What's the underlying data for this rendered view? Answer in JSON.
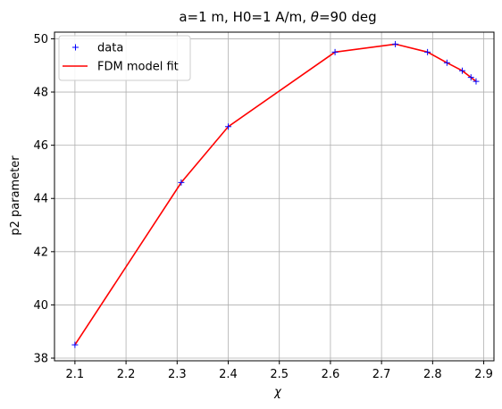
{
  "chart_data": {
    "type": "line",
    "title_parts": {
      "prefix": "a=1 m, H0=1 A/m, ",
      "symbol": "θ",
      "suffix": "=90 deg"
    },
    "xlabel": "χ",
    "ylabel": "p2 parameter",
    "xlim": [
      2.06,
      2.92
    ],
    "ylim": [
      37.9,
      50.25
    ],
    "xticks": [
      "2.1",
      "2.2",
      "2.3",
      "2.4",
      "2.5",
      "2.6",
      "2.7",
      "2.8",
      "2.9"
    ],
    "xtick_values": [
      2.1,
      2.2,
      2.3,
      2.4,
      2.5,
      2.6,
      2.7,
      2.8,
      2.9
    ],
    "yticks": [
      "38",
      "40",
      "42",
      "44",
      "46",
      "48",
      "50"
    ],
    "ytick_values": [
      38,
      40,
      42,
      44,
      46,
      48,
      50
    ],
    "grid": true,
    "legend_position": "top-left",
    "series": [
      {
        "name": "data",
        "style": "markers",
        "marker": "+",
        "color": "#0000ff",
        "x": [
          2.1,
          2.308,
          2.4,
          2.609,
          2.727,
          2.79,
          2.828,
          2.858,
          2.875,
          2.885
        ],
        "y": [
          38.5,
          44.6,
          46.7,
          49.5,
          49.8,
          49.5,
          49.1,
          48.8,
          48.55,
          48.4
        ]
      },
      {
        "name": "FDM model fit",
        "style": "line",
        "color": "#ff0000",
        "x": [
          2.1,
          2.308,
          2.4,
          2.609,
          2.727,
          2.79,
          2.828,
          2.858,
          2.875,
          2.885
        ],
        "y": [
          38.5,
          44.6,
          46.7,
          49.5,
          49.8,
          49.5,
          49.1,
          48.8,
          48.55,
          48.4
        ]
      }
    ]
  }
}
